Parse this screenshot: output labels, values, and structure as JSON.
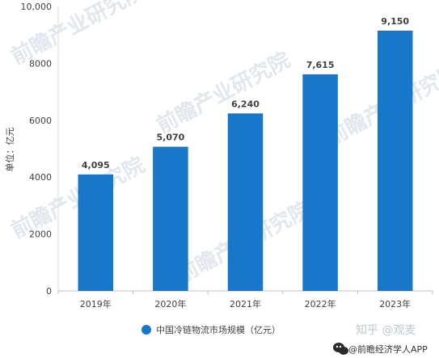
{
  "chart_data": {
    "type": "bar",
    "categories": [
      "2019年",
      "2020年",
      "2021年",
      "2022年",
      "2023年"
    ],
    "series": [
      {
        "name": "中国冷链物流市场规模（亿元）",
        "values": [
          4095,
          5070,
          6240,
          7615,
          9150
        ],
        "value_labels": [
          "4,095",
          "5,070",
          "6,240",
          "7,615",
          "9,150"
        ],
        "color": "#1777c9"
      }
    ],
    "ylabel": "单位：亿元",
    "ylim": [
      0,
      10000
    ],
    "yticks": [
      0,
      2000,
      4000,
      6000,
      8000,
      10000
    ],
    "ytick_labels": [
      "0",
      "2000",
      "4000",
      "6000",
      "8000",
      "10,000"
    ],
    "grid": false,
    "legend": "bottom"
  },
  "watermark": {
    "text": "前瞻产业研究院",
    "icon": "qianzhan-logo-icon"
  },
  "source": {
    "faint_text": "知乎 @观麦",
    "text": "@前瞻经济学人APP",
    "icon": "wechat-icon"
  }
}
